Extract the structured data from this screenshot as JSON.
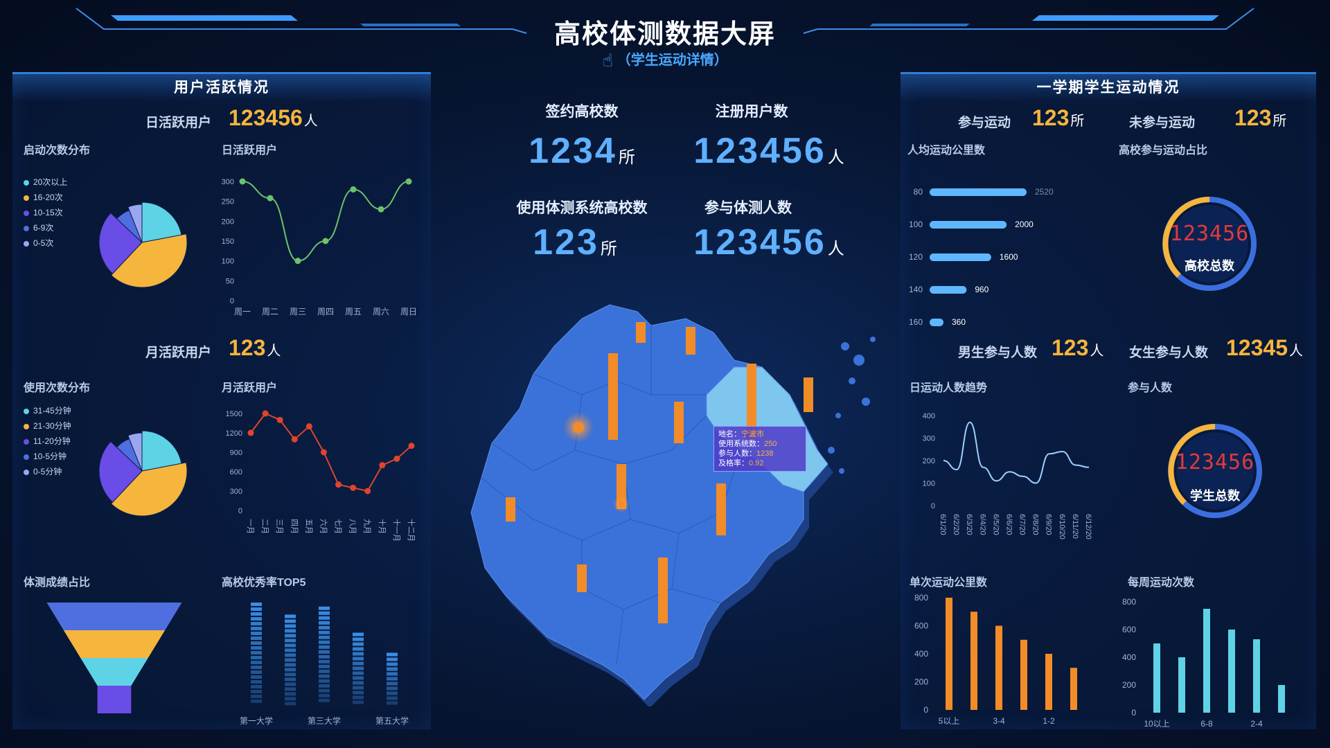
{
  "header": {
    "title": "高校体测数据大屏",
    "subtitle": "（学生运动详情）",
    "subtitle_icon": "pointing-hand-icon"
  },
  "left_panel": {
    "title": "用户活跃情况",
    "dau_label": "日活跃用户",
    "dau_value": "123456",
    "dau_unit": "人",
    "mau_label": "月活跃用户",
    "mau_value": "123",
    "mau_unit": "人",
    "launch_title": "启动次数分布",
    "usage_title": "使用次数分布",
    "dau_chart_title": "日活跃用户",
    "mau_chart_title": "月活跃用户",
    "funnel_title": "体测成绩占比",
    "top5_title": "高校优秀率TOP5"
  },
  "center": {
    "signed_label": "签约高校数",
    "signed_value": "1234",
    "signed_unit": "所",
    "registered_label": "注册用户数",
    "registered_value": "123456",
    "registered_unit": "人",
    "using_label": "使用体测系统高校数",
    "using_value": "123",
    "using_unit": "所",
    "tested_label": "参与体测人数",
    "tested_value": "123456",
    "tested_unit": "人",
    "tooltip": {
      "place_label": "地名：",
      "place_value": "宁波市",
      "system_label": "使用系统数：",
      "system_value": "250",
      "people_label": "参与人数：",
      "people_value": "1238",
      "pass_label": "及格率：",
      "pass_value": "0.92"
    }
  },
  "right_panel": {
    "title": "一学期学生运动情况",
    "participate_label": "参与运动",
    "participate_value": "123",
    "participate_unit": "所",
    "not_participate_label": "未参与运动",
    "not_participate_value": "123",
    "not_participate_unit": "所",
    "avg_km_title": "人均运动公里数",
    "ratio_title": "高校参与运动占比",
    "gauge1_value": "123456",
    "gauge1_label": "高校总数",
    "male_label": "男生参与人数",
    "male_value": "123",
    "male_unit": "人",
    "female_label": "女生参与人数",
    "female_value": "12345",
    "female_unit": "人",
    "trend_title": "日运动人数趋势",
    "participants_title": "参与人数",
    "gauge2_value": "123456",
    "gauge2_label": "学生总数",
    "single_km_title": "单次运动公里数",
    "weekly_title": "每周运动次数"
  },
  "colors": {
    "accent_blue": "#5fb0ff",
    "yellow": "#f6b53c",
    "orange": "#f28c28",
    "cyan": "#5fd3e6",
    "purple": "#6a4ce6",
    "map_blue": "#3b72d9",
    "green_line": "#6cc26a",
    "red_line": "#e0442c",
    "digital_red": "#e23a3a"
  },
  "chart_data": [
    {
      "id": "launch_pie",
      "type": "pie",
      "legend": [
        "20次以上",
        "16-20次",
        "10-15次",
        "6-9次",
        "0-5次"
      ],
      "values": [
        22,
        40,
        25,
        7,
        6
      ],
      "colors": [
        "#5fd3e6",
        "#f6b53c",
        "#6a4ce6",
        "#4f6fe0",
        "#9aa7f0"
      ],
      "legend_position": "left"
    },
    {
      "id": "dau_line",
      "type": "line",
      "categories": [
        "周一",
        "周二",
        "周三",
        "周四",
        "周五",
        "周六",
        "周日"
      ],
      "values": [
        300,
        258,
        100,
        150,
        280,
        230,
        300
      ],
      "y_ticks": [
        "0",
        "50",
        "100",
        "150",
        "200",
        "250",
        "300"
      ],
      "ylim": [
        0,
        300
      ],
      "color": "#6cc26a"
    },
    {
      "id": "usage_pie",
      "type": "pie",
      "legend": [
        "31-45分钟",
        "21-30分钟",
        "11-20分钟",
        "10-5分钟",
        "0-5分钟"
      ],
      "values": [
        22,
        40,
        25,
        7,
        6
      ],
      "colors": [
        "#5fd3e6",
        "#f6b53c",
        "#6a4ce6",
        "#4f6fe0",
        "#9aa7f0"
      ],
      "legend_position": "left"
    },
    {
      "id": "mau_line",
      "type": "line",
      "categories": [
        "一月",
        "二月",
        "三月",
        "四月",
        "五月",
        "六月",
        "七月",
        "八月",
        "九月",
        "十月",
        "十一月",
        "十二月"
      ],
      "values": [
        1200,
        1500,
        1400,
        1100,
        1300,
        900,
        400,
        350,
        300,
        700,
        800,
        1000
      ],
      "y_ticks": [
        "0",
        "300",
        "600",
        "900",
        "1200",
        "1500"
      ],
      "ylim": [
        0,
        1500
      ],
      "color": "#e0442c"
    },
    {
      "id": "score_funnel",
      "type": "bar",
      "values": [
        4,
        3,
        2,
        1
      ],
      "colors": [
        "#4f6fe0",
        "#f6b53c",
        "#5fd3e6",
        "#6a4ce6"
      ]
    },
    {
      "id": "top5_bar",
      "type": "bar",
      "categories": [
        "第一大学",
        "",
        "第三大学",
        "",
        "第五大学"
      ],
      "values": [
        100,
        88,
        96,
        70,
        50
      ],
      "color": "#3a8ee6"
    },
    {
      "id": "avg_km_bar",
      "type": "bar",
      "orientation": "horizontal",
      "categories": [
        "80",
        "100",
        "120",
        "140",
        "160"
      ],
      "values": [
        2520,
        2000,
        1600,
        960,
        360
      ],
      "value_labels": [
        "2520",
        "2000",
        "1600",
        "960",
        "360"
      ],
      "color": "#5fb8ff"
    },
    {
      "id": "daily_trend",
      "type": "line",
      "categories": [
        "6/1/20",
        "6/2/20",
        "6/3/20",
        "6/4/20",
        "6/5/20",
        "6/6/20",
        "6/7/20",
        "6/8/20",
        "6/9/20",
        "6/10/20",
        "6/11/20",
        "6/12/20"
      ],
      "values": [
        200,
        160,
        370,
        170,
        110,
        150,
        130,
        100,
        230,
        240,
        180,
        170
      ],
      "y_ticks": [
        "0",
        "100",
        "200",
        "300",
        "400"
      ],
      "ylim": [
        0,
        400
      ],
      "color": "#9fd0ff"
    },
    {
      "id": "single_km_bar",
      "type": "bar",
      "categories": [
        "5以上",
        "",
        "3-4",
        "",
        "1-2",
        ""
      ],
      "values": [
        800,
        700,
        600,
        500,
        400,
        300
      ],
      "y_ticks": [
        "0",
        "200",
        "400",
        "600",
        "800"
      ],
      "ylim": [
        0,
        800
      ],
      "color": "#f28c28"
    },
    {
      "id": "weekly_bar",
      "type": "bar",
      "categories": [
        "10以上",
        "",
        "6-8",
        "",
        "2-4",
        ""
      ],
      "values": [
        500,
        400,
        750,
        600,
        530,
        200
      ],
      "y_ticks": [
        "0",
        "200",
        "400",
        "600",
        "800"
      ],
      "ylim": [
        0,
        800
      ],
      "color": "#5fd3e6"
    }
  ]
}
